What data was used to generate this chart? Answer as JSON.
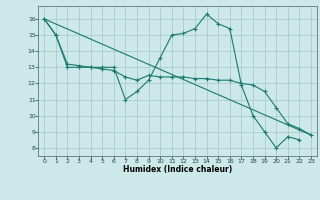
{
  "title": "",
  "xlabel": "Humidex (Indice chaleur)",
  "bg_color": "#cce8e8",
  "grid_color": "#aacccc",
  "line_color": "#1a7a6e",
  "line1_x": [
    0,
    1,
    2,
    3,
    4,
    5,
    6,
    7,
    8,
    9,
    10,
    11,
    12,
    13,
    14,
    15,
    16,
    17,
    18,
    19,
    20,
    21,
    22
  ],
  "line1_y": [
    16,
    15,
    13,
    13,
    13,
    13,
    13,
    11,
    11.5,
    12.2,
    13.6,
    15,
    15.1,
    15.4,
    16.3,
    15.7,
    15.4,
    11.9,
    10,
    9,
    8,
    8.7,
    8.5
  ],
  "line2_x": [
    0,
    1,
    2,
    3,
    4,
    5,
    6,
    7,
    8,
    9,
    10,
    11,
    12,
    13,
    14,
    15,
    16,
    17,
    18,
    19,
    20,
    21,
    22,
    23
  ],
  "line2_y": [
    16,
    15,
    13.2,
    13.1,
    13.0,
    12.9,
    12.8,
    12.4,
    12.2,
    12.5,
    12.4,
    12.4,
    12.4,
    12.3,
    12.3,
    12.2,
    12.2,
    12.0,
    11.9,
    11.5,
    10.5,
    9.5,
    9.2,
    8.8
  ],
  "line3_x": [
    0,
    23
  ],
  "line3_y": [
    16,
    8.8
  ],
  "xlim": [
    -0.5,
    23.5
  ],
  "ylim": [
    7.5,
    16.8
  ],
  "yticks": [
    8,
    9,
    10,
    11,
    12,
    13,
    14,
    15,
    16
  ],
  "xticks": [
    0,
    1,
    2,
    3,
    4,
    5,
    6,
    7,
    8,
    9,
    10,
    11,
    12,
    13,
    14,
    15,
    16,
    17,
    18,
    19,
    20,
    21,
    22,
    23
  ]
}
